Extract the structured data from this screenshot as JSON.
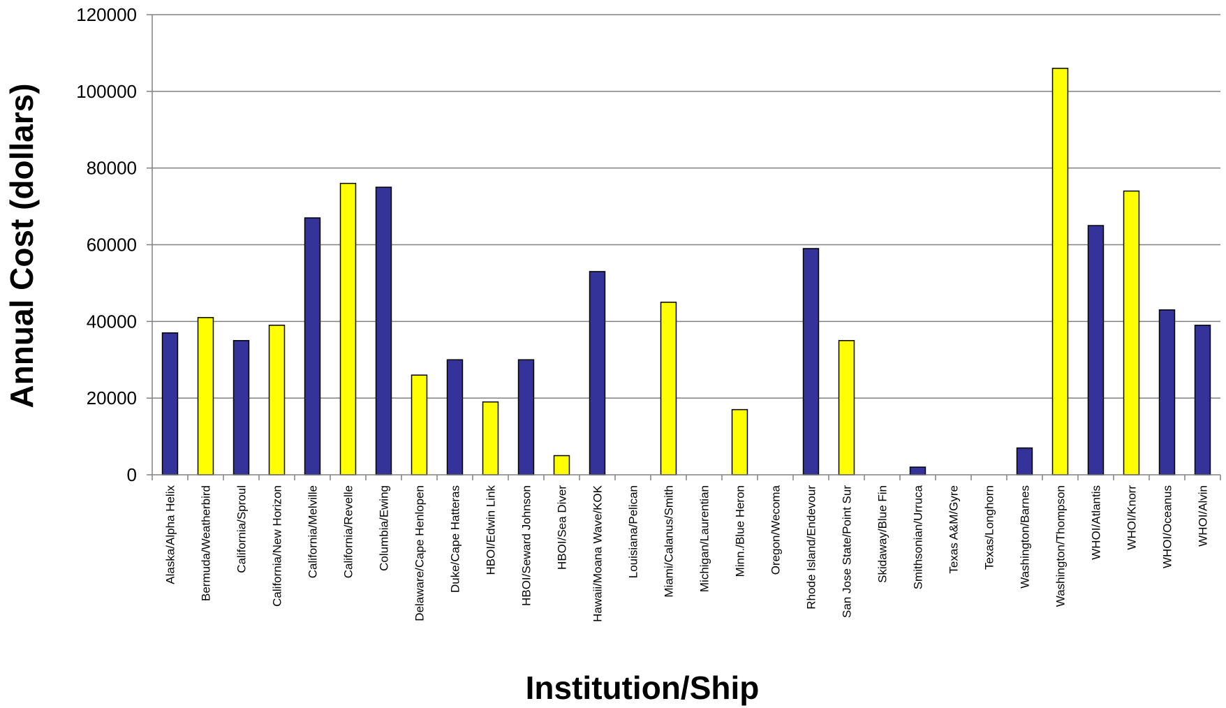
{
  "chart_data": {
    "type": "bar",
    "title": "",
    "xlabel": "Institution/Ship",
    "ylabel": "Annual Cost (dollars)",
    "ylim": [
      0,
      120000
    ],
    "yticks": [
      0,
      20000,
      40000,
      60000,
      80000,
      100000,
      120000
    ],
    "grid": true,
    "legend": "none",
    "colors": {
      "bar_a": "#333399",
      "bar_b": "#ffff00",
      "gridline": "#808080",
      "axis": "#808080",
      "bar_outline": "#000000"
    },
    "categories": [
      "Alaska/Alpha Helix",
      "Bermuda/Weatherbird",
      "California/Sproul",
      "California/New Horizon",
      "California/Melville",
      "California/Revelle",
      "Columbia/Ewing",
      "Delaware/Cape Henlopen",
      "Duke/Cape Hatteras",
      "HBOI/Edwin Link",
      "HBOI/Seward Johnson",
      "HBOI/Sea Diver",
      "Hawaii/Moana Wave/KOK",
      "Louisiana/Pelican",
      "Miami/Calanus/Smith",
      "Michigan/Laurentian",
      "Minn./Blue Heron",
      "Oregon/Wecoma",
      "Rhode Island/Endevour",
      "San Jose State/Point Sur",
      "Skidaway/Blue Fin",
      "Smithsonian/Urruca",
      "Texas A&M/Gyre",
      "Texas/Longhorn",
      "Washington/Barnes",
      "Washington/Thompson",
      "WHOI/Atlantis",
      "WHOI/Knorr",
      "WHOI/Oceanus",
      "WHOI/Alvin"
    ],
    "values": [
      37000,
      41000,
      35000,
      39000,
      67000,
      76000,
      75000,
      26000,
      30000,
      19000,
      30000,
      5000,
      53000,
      0,
      45000,
      0,
      17000,
      0,
      59000,
      35000,
      0,
      2000,
      0,
      0,
      7000,
      106000,
      65000,
      74000,
      43000,
      39000
    ],
    "bar_colors": [
      "bar_a",
      "bar_b",
      "bar_a",
      "bar_b",
      "bar_a",
      "bar_b",
      "bar_a",
      "bar_b",
      "bar_a",
      "bar_b",
      "bar_a",
      "bar_b",
      "bar_a",
      "bar_b",
      "bar_b",
      "bar_a",
      "bar_b",
      "bar_a",
      "bar_a",
      "bar_b",
      "bar_a",
      "bar_a",
      "bar_b",
      "bar_a",
      "bar_a",
      "bar_b",
      "bar_a",
      "bar_b",
      "bar_a",
      "bar_a"
    ]
  }
}
